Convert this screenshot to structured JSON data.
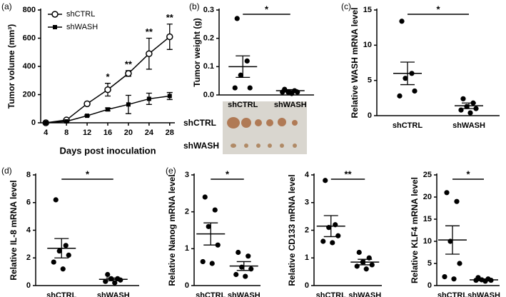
{
  "chart_data": [
    {
      "type": "line",
      "panel": "(a)",
      "xlabel": "Days post inoculation",
      "ylabel": "Tumor volume (mm³)",
      "x": [
        4,
        8,
        12,
        16,
        20,
        24,
        28
      ],
      "xlim": [
        3,
        29
      ],
      "xticks": [
        4,
        8,
        12,
        16,
        20,
        24,
        28
      ],
      "ylim": [
        0,
        800
      ],
      "yticks": [
        0,
        200,
        400,
        600,
        800
      ],
      "legend": "upper left",
      "series": [
        {
          "name": "shCTRL",
          "color": "#000000",
          "marker": "open-circle",
          "values": [
            0,
            20,
            135,
            235,
            350,
            490,
            610
          ],
          "errors": [
            0,
            5,
            10,
            45,
            20,
            110,
            90
          ]
        },
        {
          "name": "shWASH",
          "color": "#000000",
          "marker": "square",
          "values": [
            0,
            10,
            50,
            95,
            130,
            170,
            190
          ],
          "errors": [
            0,
            3,
            5,
            10,
            65,
            40,
            25
          ]
        }
      ],
      "annotations": [
        {
          "x": 16,
          "text": "*"
        },
        {
          "x": 20,
          "text": "**"
        },
        {
          "x": 24,
          "text": "**"
        },
        {
          "x": 28,
          "text": "**"
        }
      ]
    },
    {
      "type": "dot",
      "panel": "(b)",
      "ylabel": "Tumor weight (g)",
      "categories": [
        "shCTRL",
        "shWASH"
      ],
      "ylim": [
        0,
        0.3
      ],
      "yticks": [
        {
          "value": 0,
          "label": "0.0"
        },
        0.1,
        0.2,
        0.3
      ],
      "points": [
        [
          0.27,
          0.12,
          0.07,
          0.025,
          0.025
        ],
        [
          0.02,
          0.015,
          0.01,
          0.01,
          0.01,
          0.005
        ]
      ],
      "means": [
        0.1,
        0.015
      ],
      "errors": [
        0.038,
        0.004
      ],
      "significance": "*",
      "photo_labels": [
        "shCTRL",
        "shWASH"
      ]
    },
    {
      "type": "dot",
      "panel": "(c)",
      "ylabel": "Relative WASH mRNA level",
      "categories": [
        "shCTRL",
        "shWASH"
      ],
      "ylim": [
        0,
        15
      ],
      "yticks": [
        0,
        5,
        10,
        15
      ],
      "points": [
        [
          13.4,
          6.0,
          5.3,
          3.5,
          2.8
        ],
        [
          2.4,
          1.8,
          1.3,
          1.0,
          0.8,
          0.4
        ]
      ],
      "means": [
        6.0,
        1.4
      ],
      "errors": [
        1.6,
        0.4
      ],
      "significance": "*"
    },
    {
      "type": "dot",
      "panel": "(d)",
      "ylabel": "Relative IL-8 mRNA level",
      "categories": [
        "shCTRL",
        "shWASH"
      ],
      "ylim": [
        0,
        8
      ],
      "yticks": [
        0,
        2,
        4,
        6,
        8
      ],
      "points": [
        [
          6.2,
          2.9,
          2.5,
          2.2,
          1.7,
          1.2
        ],
        [
          0.8,
          0.5,
          0.5,
          0.4,
          0.3,
          0.2
        ]
      ],
      "means": [
        2.7,
        0.45
      ],
      "errors": [
        0.7,
        0.1
      ],
      "significance": "*"
    },
    {
      "type": "dot",
      "panel": "(e)",
      "ylabel": "Relative Nanog mRNA level",
      "categories": [
        "shCTRL",
        "shWASH"
      ],
      "ylim": [
        0,
        3
      ],
      "yticks": [
        0,
        1,
        2,
        3
      ],
      "points": [
        [
          2.4,
          2.05,
          1.6,
          1.1,
          0.65,
          0.6
        ],
        [
          0.9,
          0.8,
          0.5,
          0.45,
          0.3,
          0.25
        ]
      ],
      "means": [
        1.4,
        0.53
      ],
      "errors": [
        0.3,
        0.12
      ],
      "significance": "*"
    },
    {
      "type": "dot",
      "ylabel": "Relative CD133 mRNA level",
      "categories": [
        "shCTRL",
        "shWASH"
      ],
      "ylim": [
        0,
        4
      ],
      "yticks": [
        0,
        1,
        2,
        3,
        4
      ],
      "points": [
        [
          3.8,
          2.2,
          2.1,
          1.8,
          1.6,
          1.55
        ],
        [
          1.2,
          1.0,
          0.85,
          0.75,
          0.7,
          0.6
        ]
      ],
      "means": [
        2.15,
        0.85
      ],
      "errors": [
        0.38,
        0.1
      ],
      "significance": "**"
    },
    {
      "type": "dot",
      "ylabel": "Relative KLF4 mRNA level",
      "categories": [
        "shCTRL",
        "shWASH"
      ],
      "ylim": [
        0,
        25
      ],
      "yticks": [
        0,
        5,
        10,
        15,
        20,
        25
      ],
      "points": [
        [
          21,
          19,
          10,
          5,
          2,
          1.5
        ],
        [
          1.8,
          1.5,
          1.3,
          1.2,
          1.2,
          1.0
        ]
      ],
      "means": [
        10.3,
        1.3
      ],
      "errors": [
        3.2,
        0.2
      ],
      "significance": "*"
    }
  ]
}
